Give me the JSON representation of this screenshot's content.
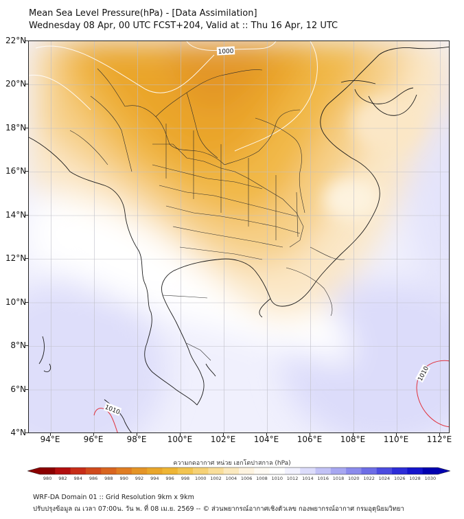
{
  "header": {
    "title_line1": "Mean Sea Level Pressure(hPa) - [Data Assimilation]",
    "title_line2": "Wednesday 08 Apr, 00 UTC FCST+204, Valid at :: Thu 16 Apr, 12 UTC"
  },
  "map": {
    "lat_labels": [
      "22°N",
      "20°N",
      "18°N",
      "16°N",
      "14°N",
      "12°N",
      "10°N",
      "8°N",
      "6°N",
      "4°N"
    ],
    "lon_labels": [
      "94°E",
      "96°E",
      "98°E",
      "100°E",
      "102°E",
      "104°E",
      "106°E",
      "108°E",
      "110°E",
      "112°E"
    ],
    "contour_labels": [
      "1000",
      "1010",
      "1010"
    ]
  },
  "colorbar": {
    "label": "ความกดอากาศ หน่วย เฮกโตปาสกาล (hPa)",
    "ticks": [
      "980",
      "982",
      "984",
      "986",
      "988",
      "990",
      "992",
      "994",
      "996",
      "998",
      "1000",
      "1002",
      "1004",
      "1006",
      "1008",
      "1010",
      "1012",
      "1014",
      "1016",
      "1018",
      "1020",
      "1022",
      "1024",
      "1026",
      "1028",
      "1030"
    ],
    "colors": [
      "#8b0000",
      "#b20e0e",
      "#c72d17",
      "#d04a1c",
      "#d9651f",
      "#e07d22",
      "#e49426",
      "#e9a62a",
      "#eeb534",
      "#f2c450",
      "#f6d175",
      "#f9de9a",
      "#fbe9be",
      "#fdf3df",
      "#fefaf3",
      "#ffffff",
      "#f1f1fe",
      "#dcdcfb",
      "#c2c2f6",
      "#a7a7f1",
      "#8b8bec",
      "#6d6de6",
      "#4c4ce0",
      "#2d2dd8",
      "#1414cc",
      "#0000b0"
    ]
  },
  "footer": {
    "line1": "WRF-DA Domain 01 :: Grid Resolution 9km x 9km",
    "line2": "ปรับปรุงข้อมูล ณ เวลา 07:00น. วัน พ. ที่ 08 เม.ย. 2569 -- © ส่วนพยากรณ์อากาศเชิงตัวเลข กองพยากรณ์อากาศ กรมอุตุนิยมวิทยา"
  }
}
